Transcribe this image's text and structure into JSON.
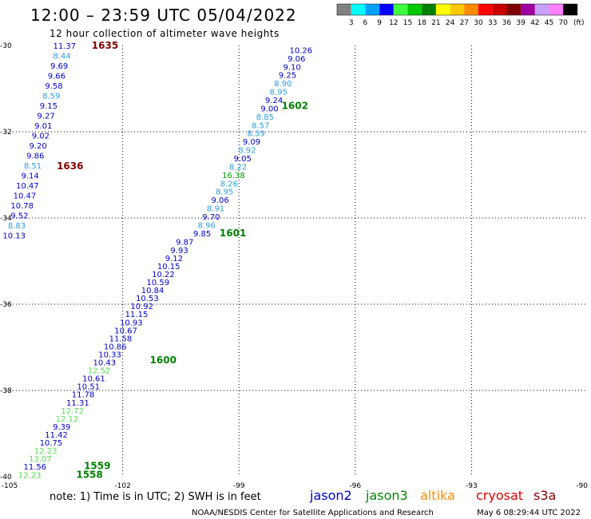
{
  "title": "12:00 – 23:59 UTC 05/04/2022",
  "subtitle": "12 hour collection of altimeter wave heights",
  "legend": {
    "unit": "(ft)",
    "values": [
      "3",
      "6",
      "9",
      "12",
      "15",
      "18",
      "21",
      "24",
      "27",
      "30",
      "33",
      "36",
      "39",
      "42",
      "45",
      "70"
    ],
    "colors": [
      "#808080",
      "#00ffff",
      "#00a0ff",
      "#0000ff",
      "#40ff40",
      "#00c800",
      "#008000",
      "#ffff00",
      "#ffc800",
      "#ff8c00",
      "#ff0000",
      "#c80000",
      "#800000",
      "#a000a0",
      "#c8a0ff",
      "#ff80ff",
      "#000000"
    ]
  },
  "axes": {
    "x_ticks": [
      "-105",
      "-102",
      "-99",
      "-96",
      "-93",
      "-90"
    ],
    "y_ticks": [
      "-30",
      "-32",
      "-34",
      "-36",
      "-38",
      "-40"
    ]
  },
  "note": "note: 1) Time is in UTC; 2) SWH is in feet",
  "satellites": [
    {
      "name": "jason2",
      "color": "#0000cc"
    },
    {
      "name": "jason3",
      "color": "#008800"
    },
    {
      "name": "altika",
      "color": "#ff8c00"
    },
    {
      "name": "cryosat",
      "color": "#dd0000"
    },
    {
      "name": "s3a",
      "color": "#880000"
    }
  ],
  "credit_left": "NOAA/NESDIS Center for Satellite Applications and Research",
  "credit_right": "May  6 08:29:44 UTC 2022",
  "pass_labels": [
    {
      "text": "1635",
      "lon": -102.8,
      "lat": -30.0,
      "color": "#800000"
    },
    {
      "text": "1636",
      "lon": -103.7,
      "lat": -32.8,
      "color": "#800000"
    },
    {
      "text": "1602",
      "lon": -97.9,
      "lat": -31.4,
      "color": "#008000"
    },
    {
      "text": "1601",
      "lon": -99.5,
      "lat": -34.35,
      "color": "#008000"
    },
    {
      "text": "1600",
      "lon": -101.3,
      "lat": -37.3,
      "color": "#008000"
    },
    {
      "text": "1559",
      "lon": -103.0,
      "lat": -39.75,
      "color": "#008000"
    },
    {
      "text": "1558",
      "lon": -103.2,
      "lat": -39.95,
      "color": "#008000"
    }
  ],
  "tracks": [
    {
      "name": "s3a-1635-1636",
      "color_values": true,
      "start": {
        "lon": -103.5,
        "lat": -30.0
      },
      "end": {
        "lon": -104.8,
        "lat": -34.4
      },
      "values": [
        "11.37",
        "8.44",
        "9.69",
        "9.66",
        "9.58",
        "8.59",
        "9.15",
        "9.27",
        "9.01",
        "9.02",
        "9.20",
        "9.86",
        "8.51",
        "9.14",
        "10.47",
        "10.47",
        "10.78",
        "9.52",
        "8.83",
        "10.13"
      ]
    },
    {
      "name": "jason3-1602-1601",
      "color_values": true,
      "start": {
        "lon": -97.4,
        "lat": -30.1
      },
      "end": {
        "lon": -99.95,
        "lat": -34.35
      },
      "values": [
        "10.26",
        "9.06",
        "9.10",
        "9.25",
        "8.90",
        "8.95",
        "9.24",
        "9.00",
        "8.85",
        "8.57",
        "8.59",
        "9.09",
        "8.92",
        "9.05",
        "8.22",
        "16.38",
        "8.26",
        "8.95",
        "9.06",
        "8.91",
        "9.70",
        "8.96",
        "9.85"
      ]
    },
    {
      "name": "jason3-1601-1558",
      "color_values": true,
      "start": {
        "lon": -100.4,
        "lat": -34.55
      },
      "end": {
        "lon": -104.4,
        "lat": -39.95
      },
      "values": [
        "9.87",
        "9.93",
        "9.12",
        "10.15",
        "10.22",
        "10.59",
        "10.84",
        "10.53",
        "10.92",
        "11.15",
        "10.93",
        "10.67",
        "11.58",
        "10.86",
        "10.33",
        "10.43",
        "12.52",
        "10.61",
        "10.51",
        "11.78",
        "11.31",
        "12.72",
        "12.12",
        "9.39",
        "11.42",
        "10.75",
        "12.23",
        "13.07",
        "11.56",
        "12.23"
      ]
    }
  ]
}
